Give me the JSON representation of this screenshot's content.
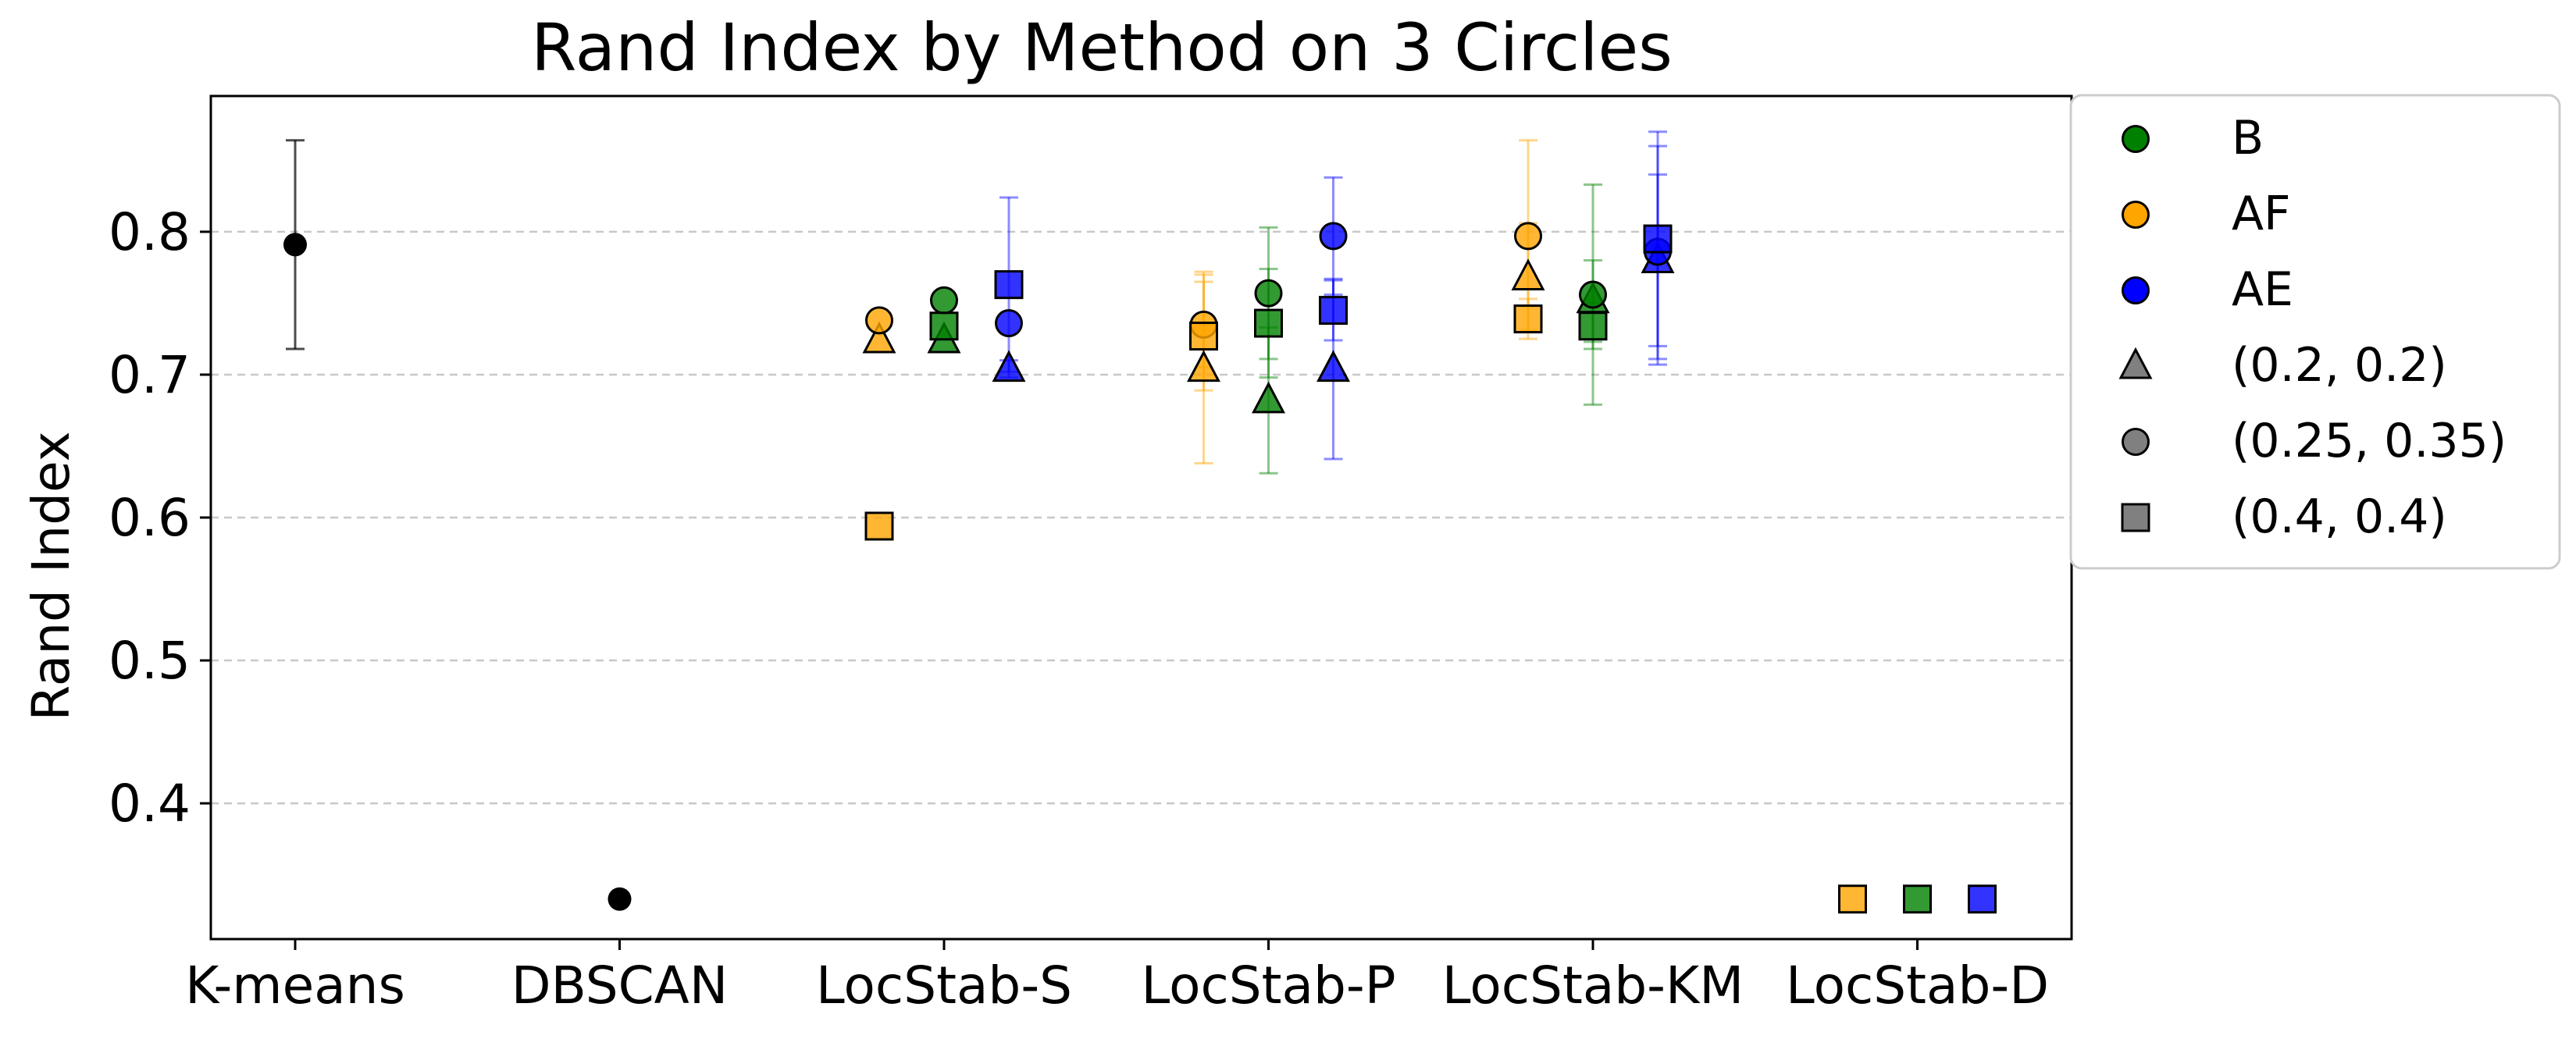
{
  "chart_data": {
    "type": "scatter",
    "title": "Rand Index by Method on 3 Circles",
    "xlabel": "",
    "ylabel": "Rand Index",
    "categories": [
      "K-means",
      "DBSCAN",
      "LocStab-S",
      "LocStab-P",
      "LocStab-KM",
      "LocStab-D"
    ],
    "ylim": [
      0.305,
      0.895
    ],
    "yticks": [
      "0.4",
      "0.5",
      "0.6",
      "0.7",
      "0.8"
    ],
    "ytick_values": [
      0.4,
      0.5,
      0.6,
      0.7,
      0.8
    ],
    "grid": "horizontal dashed",
    "legend_position": "outside right, top",
    "colors": {
      "B": "#008000",
      "AF": "#FFA500",
      "AE": "#0000FF",
      "baseline": "#000000",
      "legend_shape": "#808080"
    },
    "legend": [
      {
        "label": "B",
        "kind": "color",
        "color": "#008000",
        "marker": "circle"
      },
      {
        "label": "AF",
        "kind": "color",
        "color": "#FFA500",
        "marker": "circle"
      },
      {
        "label": "AE",
        "kind": "color",
        "color": "#0000FF",
        "marker": "circle"
      },
      {
        "label": "(0.2, 0.2)",
        "kind": "shape",
        "color": "#808080",
        "marker": "triangle"
      },
      {
        "label": "(0.25, 0.35)",
        "kind": "shape",
        "color": "#808080",
        "marker": "circle"
      },
      {
        "label": "(0.4, 0.4)",
        "kind": "shape",
        "color": "#808080",
        "marker": "square"
      }
    ],
    "baseline_points": [
      {
        "category": "K-means",
        "y": 0.791,
        "err_low": 0.718,
        "err_high": 0.864
      },
      {
        "category": "DBSCAN",
        "y": 0.333
      }
    ],
    "points": [
      {
        "category": "LocStab-S",
        "variant": "AF",
        "marker": "triangle",
        "y": 0.724
      },
      {
        "category": "LocStab-S",
        "variant": "AF",
        "marker": "circle",
        "y": 0.738
      },
      {
        "category": "LocStab-S",
        "variant": "AF",
        "marker": "square",
        "y": 0.594
      },
      {
        "category": "LocStab-S",
        "variant": "B",
        "marker": "triangle",
        "y": 0.724
      },
      {
        "category": "LocStab-S",
        "variant": "B",
        "marker": "circle",
        "y": 0.752
      },
      {
        "category": "LocStab-S",
        "variant": "B",
        "marker": "square",
        "y": 0.734
      },
      {
        "category": "LocStab-S",
        "variant": "AE",
        "marker": "triangle",
        "y": 0.704,
        "err_low": 0.698,
        "err_high": 0.71
      },
      {
        "category": "LocStab-S",
        "variant": "AE",
        "marker": "circle",
        "y": 0.736
      },
      {
        "category": "LocStab-S",
        "variant": "AE",
        "marker": "square",
        "y": 0.763,
        "err_low": 0.702,
        "err_high": 0.824
      },
      {
        "category": "LocStab-P",
        "variant": "AF",
        "marker": "triangle",
        "y": 0.704,
        "err_low": 0.638,
        "err_high": 0.77
      },
      {
        "category": "LocStab-P",
        "variant": "AF",
        "marker": "circle",
        "y": 0.735,
        "err_low": 0.705,
        "err_high": 0.765
      },
      {
        "category": "LocStab-P",
        "variant": "AF",
        "marker": "square",
        "y": 0.727,
        "err_low": 0.689,
        "err_high": 0.772
      },
      {
        "category": "LocStab-P",
        "variant": "B",
        "marker": "triangle",
        "y": 0.682,
        "err_low": 0.631,
        "err_high": 0.733
      },
      {
        "category": "LocStab-P",
        "variant": "B",
        "marker": "circle",
        "y": 0.757,
        "err_low": 0.711,
        "err_high": 0.803
      },
      {
        "category": "LocStab-P",
        "variant": "B",
        "marker": "square",
        "y": 0.736,
        "err_low": 0.698,
        "err_high": 0.774
      },
      {
        "category": "LocStab-P",
        "variant": "AE",
        "marker": "triangle",
        "y": 0.704,
        "err_low": 0.641,
        "err_high": 0.767
      },
      {
        "category": "LocStab-P",
        "variant": "AE",
        "marker": "circle",
        "y": 0.797,
        "err_low": 0.756,
        "err_high": 0.838
      },
      {
        "category": "LocStab-P",
        "variant": "AE",
        "marker": "square",
        "y": 0.745,
        "err_low": 0.724,
        "err_high": 0.766
      },
      {
        "category": "LocStab-KM",
        "variant": "AF",
        "marker": "triangle",
        "y": 0.768,
        "err_low": 0.73,
        "err_high": 0.806
      },
      {
        "category": "LocStab-KM",
        "variant": "AF",
        "marker": "circle",
        "y": 0.797,
        "err_low": 0.731,
        "err_high": 0.864
      },
      {
        "category": "LocStab-KM",
        "variant": "AF",
        "marker": "square",
        "y": 0.739,
        "err_low": 0.725,
        "err_high": 0.753
      },
      {
        "category": "LocStab-KM",
        "variant": "B",
        "marker": "triangle",
        "y": 0.752,
        "err_low": 0.723,
        "err_high": 0.78
      },
      {
        "category": "LocStab-KM",
        "variant": "B",
        "marker": "circle",
        "y": 0.756,
        "err_low": 0.679,
        "err_high": 0.833
      },
      {
        "category": "LocStab-KM",
        "variant": "B",
        "marker": "square",
        "y": 0.734,
        "err_low": 0.718,
        "err_high": 0.75
      },
      {
        "category": "LocStab-KM",
        "variant": "AE",
        "marker": "triangle",
        "y": 0.78,
        "err_low": 0.72,
        "err_high": 0.84
      },
      {
        "category": "LocStab-KM",
        "variant": "AE",
        "marker": "circle",
        "y": 0.786,
        "err_low": 0.707,
        "err_high": 0.87
      },
      {
        "category": "LocStab-KM",
        "variant": "AE",
        "marker": "square",
        "y": 0.795,
        "err_low": 0.711,
        "err_high": 0.86
      },
      {
        "category": "LocStab-D",
        "variant": "AF",
        "marker": "square",
        "y": 0.333
      },
      {
        "category": "LocStab-D",
        "variant": "B",
        "marker": "square",
        "y": 0.333
      },
      {
        "category": "LocStab-D",
        "variant": "AE",
        "marker": "square",
        "y": 0.333
      }
    ]
  }
}
